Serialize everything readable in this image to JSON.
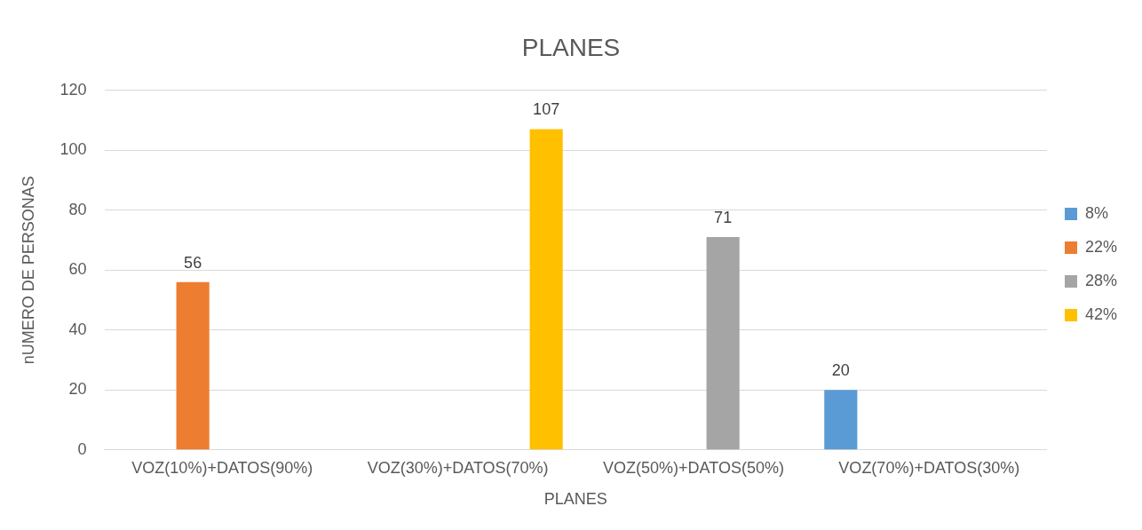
{
  "chart_data": {
    "type": "bar",
    "title": "PLANES",
    "xlabel": "PLANES",
    "ylabel": "nUMERO DE PERSONAS",
    "categories": [
      "VOZ(10%)+DATOS(90%)",
      "VOZ(30%)+DATOS(70%)",
      "VOZ(50%)+DATOS(50%)",
      "VOZ(70%)+DATOS(30%)"
    ],
    "series": [
      {
        "name": "8%",
        "color": "#5b9bd5",
        "values": [
          null,
          null,
          null,
          20
        ]
      },
      {
        "name": "22%",
        "color": "#ed7d31",
        "values": [
          56,
          null,
          null,
          null
        ]
      },
      {
        "name": "28%",
        "color": "#a5a5a5",
        "values": [
          null,
          null,
          71,
          null
        ]
      },
      {
        "name": "42%",
        "color": "#ffc000",
        "values": [
          null,
          107,
          null,
          null
        ]
      }
    ],
    "ylim": [
      0,
      120
    ],
    "yticks": [
      0,
      20,
      40,
      60,
      80,
      100,
      120
    ],
    "grid": "y",
    "legend": "right",
    "data_labels": true
  }
}
